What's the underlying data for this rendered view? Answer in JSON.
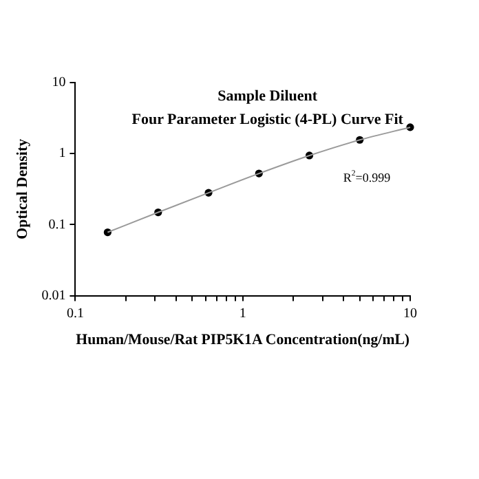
{
  "chart_data": {
    "type": "scatter",
    "title": "Sample Diluent",
    "subtitle": "Four Parameter Logistic (4-PL) Curve Fit",
    "xlabel": "Human/Mouse/Rat PIP5K1A Concentration(ng/mL)",
    "ylabel": "Optical Density",
    "log": "xy",
    "legend": false,
    "grid": false,
    "xlim": [
      0.1,
      10
    ],
    "ylim": [
      0.01,
      10
    ],
    "xticks": [
      0.1,
      {
        "value": 0.2,
        "label": null
      },
      {
        "value": 0.3,
        "label": null
      },
      {
        "value": 0.4,
        "label": null
      },
      {
        "value": 0.5,
        "label": null
      },
      {
        "value": 0.6,
        "label": null
      },
      {
        "value": 0.7,
        "label": null
      },
      {
        "value": 0.8,
        "label": null
      },
      {
        "value": 0.9,
        "label": null
      },
      1,
      {
        "value": 2,
        "label": null
      },
      {
        "value": 3,
        "label": null
      },
      {
        "value": 4,
        "label": null
      },
      {
        "value": 5,
        "label": null
      },
      {
        "value": 6,
        "label": null
      },
      {
        "value": 7,
        "label": null
      },
      {
        "value": 8,
        "label": null
      },
      {
        "value": 9,
        "label": null
      },
      10
    ],
    "yticks": [
      0.01,
      0.1,
      1,
      10
    ],
    "annotations": [
      "R$^{2}$=0.999"
    ],
    "series": [
      {
        "type": "line",
        "color": "#9a9a9a",
        "marker": "none",
        "x": [
          0.156,
          0.3125,
          0.625,
          1.25,
          2.5,
          5,
          10
        ],
        "values": [
          0.078,
          0.149,
          0.281,
          0.525,
          0.94,
          1.56,
          2.35
        ]
      },
      {
        "color": "#000000",
        "marker": "circle",
        "x": [
          0.156,
          0.3125,
          0.625,
          1.25,
          2.5,
          5,
          10
        ],
        "values": [
          0.078,
          0.149,
          0.281,
          0.525,
          0.94,
          1.56,
          2.35
        ]
      }
    ]
  }
}
